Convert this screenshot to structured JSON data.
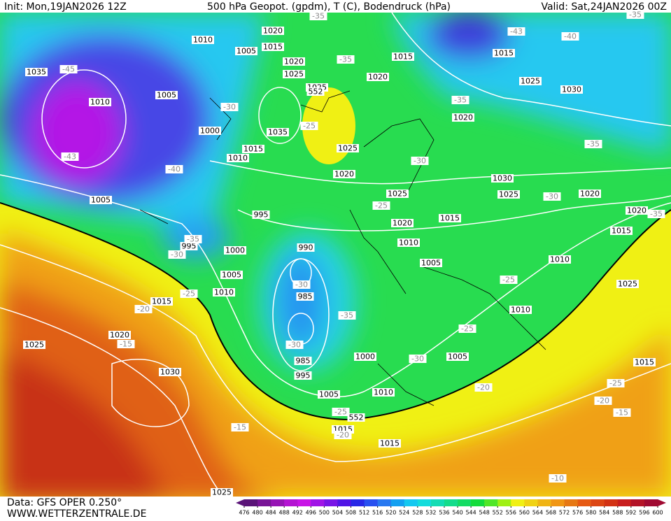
{
  "header": {
    "init": "Init: Mon,19JAN2026 12Z",
    "title": "500 hPa Geopot. (gpdm), T (C), Bodendruck (hPa)",
    "valid": "Valid: Sat,24JAN2026 00Z"
  },
  "map": {
    "pressure_labels": [
      "1010",
      "1020",
      "1015",
      "1005",
      "1035",
      "1005",
      "1010",
      "1020",
      "1025",
      "1025",
      "1035",
      "1000",
      "1015",
      "1010",
      "1025",
      "1020",
      "1020",
      "1015",
      "1015",
      "1025",
      "1030",
      "1020",
      "1030",
      "1025",
      "1020",
      "1020",
      "1015",
      "1025",
      "1020",
      "1015",
      "1010",
      "1005",
      "1010",
      "1005",
      "995",
      "995",
      "1000",
      "990",
      "1005",
      "1010",
      "1015",
      "1020",
      "1025",
      "1030",
      "985",
      "985",
      "995",
      "1000",
      "1005",
      "1005",
      "1010",
      "1010",
      "1015",
      "1015",
      "1015",
      "1025",
      "1025"
    ],
    "contour_labels": [
      "552",
      "552"
    ],
    "temperature_labels": [
      "-35",
      "-45",
      "-43",
      "-40",
      "-35",
      "-30",
      "-30",
      "-35",
      "-25",
      "-30",
      "-35",
      "-43",
      "-40",
      "-35",
      "-30",
      "-25",
      "-35",
      "-30",
      "-35",
      "-30",
      "-25",
      "-20",
      "-15",
      "-30",
      "-25",
      "-25",
      "-20",
      "-25",
      "-20",
      "-15",
      "-25",
      "-20",
      "-15",
      "-10",
      "-35"
    ]
  },
  "footer": {
    "data": "Data: GFS OPER 0.250°",
    "site": "WWW.WETTERZENTRALE.DE"
  },
  "colorbar": {
    "ticks": [
      476,
      480,
      484,
      488,
      492,
      496,
      500,
      504,
      508,
      512,
      516,
      520,
      524,
      528,
      532,
      536,
      540,
      544,
      548,
      552,
      556,
      560,
      564,
      568,
      572,
      576,
      580,
      584,
      588,
      592,
      596,
      600
    ],
    "colors": [
      "#5a1478",
      "#781496",
      "#9614b4",
      "#b414d2",
      "#c814e6",
      "#a014e6",
      "#7814e6",
      "#5014e6",
      "#2828e6",
      "#2850f0",
      "#2878f0",
      "#14a0f0",
      "#14c8f0",
      "#14dcdc",
      "#14dcb4",
      "#14dc8c",
      "#14dc64",
      "#14dc3c",
      "#50e628",
      "#a0f014",
      "#f0f014",
      "#f0d214",
      "#f0b414",
      "#f09614",
      "#e67814",
      "#e65a14",
      "#dc4614",
      "#d23214",
      "#c81e1e",
      "#b41428",
      "#a00a32"
    ]
  }
}
